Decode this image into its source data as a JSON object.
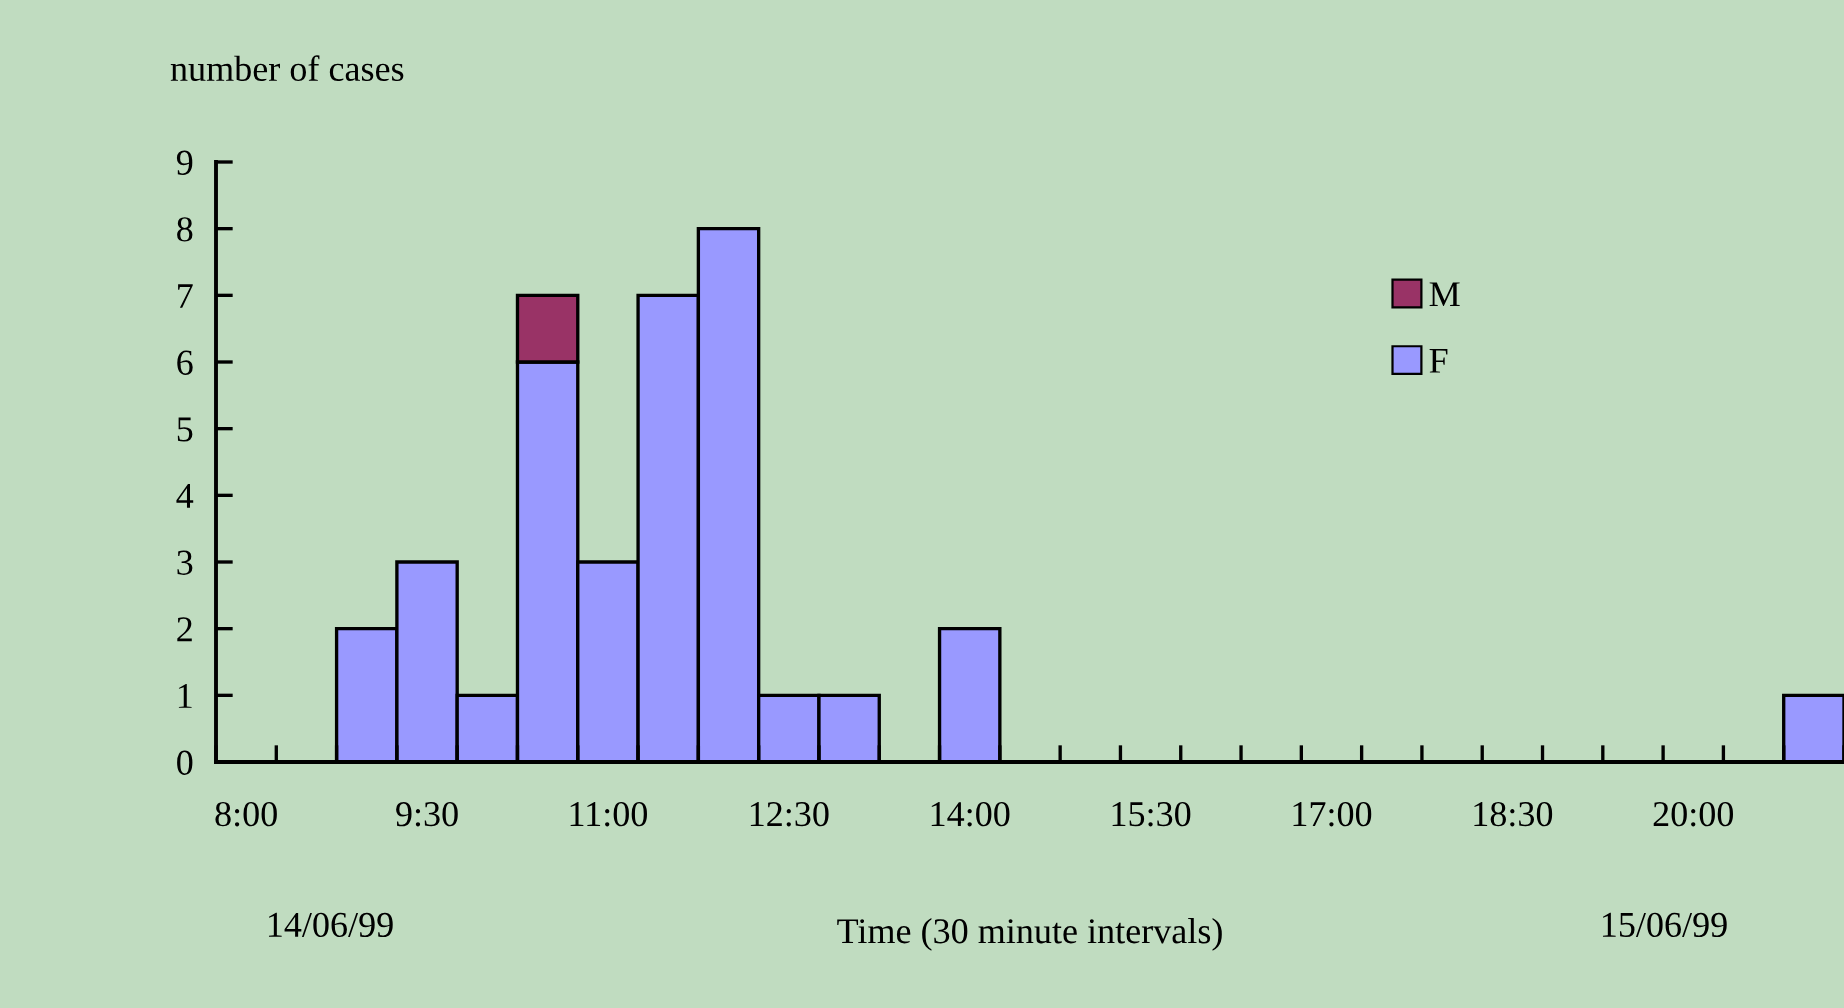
{
  "chart_data": {
    "type": "bar",
    "stacked": true,
    "ylabel": "number of cases",
    "xlabel": "Time (30 minute intervals)",
    "categories": [
      "8:00",
      null,
      null,
      "9:30",
      null,
      null,
      "11:00",
      null,
      null,
      "12:30",
      null,
      null,
      "14:00",
      null,
      null,
      "15:30",
      null,
      null,
      "17:00",
      null,
      null,
      "18:30",
      null,
      null,
      "20:00",
      null,
      null
    ],
    "series": [
      {
        "name": "F",
        "color": "#9999ff",
        "values": [
          0,
          0,
          2,
          3,
          1,
          6,
          3,
          7,
          8,
          1,
          1,
          0,
          2,
          0,
          0,
          0,
          0,
          0,
          0,
          0,
          0,
          0,
          0,
          0,
          0,
          0,
          1
        ]
      },
      {
        "name": "M",
        "color": "#993366",
        "values": [
          0,
          0,
          0,
          0,
          0,
          1,
          0,
          0,
          0,
          0,
          0,
          0,
          0,
          0,
          0,
          0,
          0,
          0,
          0,
          0,
          0,
          0,
          0,
          0,
          0,
          0,
          0
        ]
      }
    ],
    "ylim": [
      0,
      9
    ],
    "yticks": [
      0,
      1,
      2,
      3,
      4,
      5,
      6,
      7,
      8,
      9
    ],
    "annotations": [
      "14/06/99",
      "15/06/99"
    ],
    "legend": "right",
    "grid": false
  }
}
